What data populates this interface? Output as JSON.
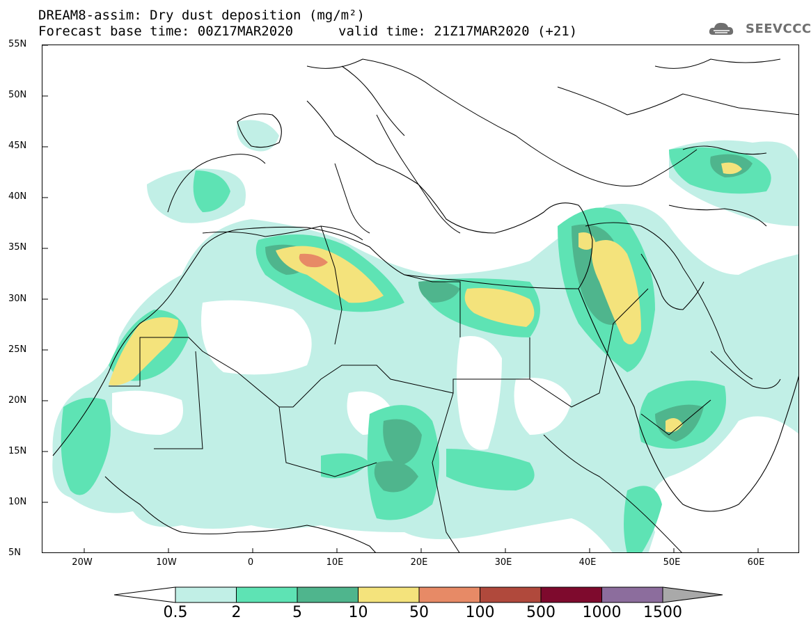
{
  "title": {
    "line1": "DREAM8-assim: Dry dust deposition (mg/m²)",
    "line2": "Forecast base time: 00Z17MAR2020",
    "valid": "valid time: 21Z17MAR2020 (+21)"
  },
  "logo": {
    "text": "SEEVCCC",
    "icon": "cloud-icon"
  },
  "map": {
    "lat_labels": [
      "55N",
      "50N",
      "45N",
      "40N",
      "35N",
      "30N",
      "25N",
      "20N",
      "15N",
      "10N",
      "5N"
    ],
    "lon_labels": [
      "20W",
      "10W",
      "0",
      "10E",
      "20E",
      "30E",
      "40E",
      "50E",
      "60E"
    ],
    "lat_range": [
      5,
      55
    ],
    "lon_range": [
      -25,
      65
    ]
  },
  "colorbar": {
    "labels": [
      "0.5",
      "2",
      "5",
      "10",
      "50",
      "100",
      "500",
      "1000",
      "1500"
    ],
    "colors": [
      "#c1efe6",
      "#5ee3b4",
      "#4fb58d",
      "#f4e37c",
      "#e78a66",
      "#b0493c",
      "#7e0a2d",
      "#8c6d9d",
      "#a9a9a9"
    ]
  },
  "colors": {
    "level1": "#c1efe6",
    "level2": "#5ee3b4",
    "level3": "#4fb58d",
    "level4": "#f4e37c",
    "level5": "#e78a66",
    "border": "#000000"
  }
}
